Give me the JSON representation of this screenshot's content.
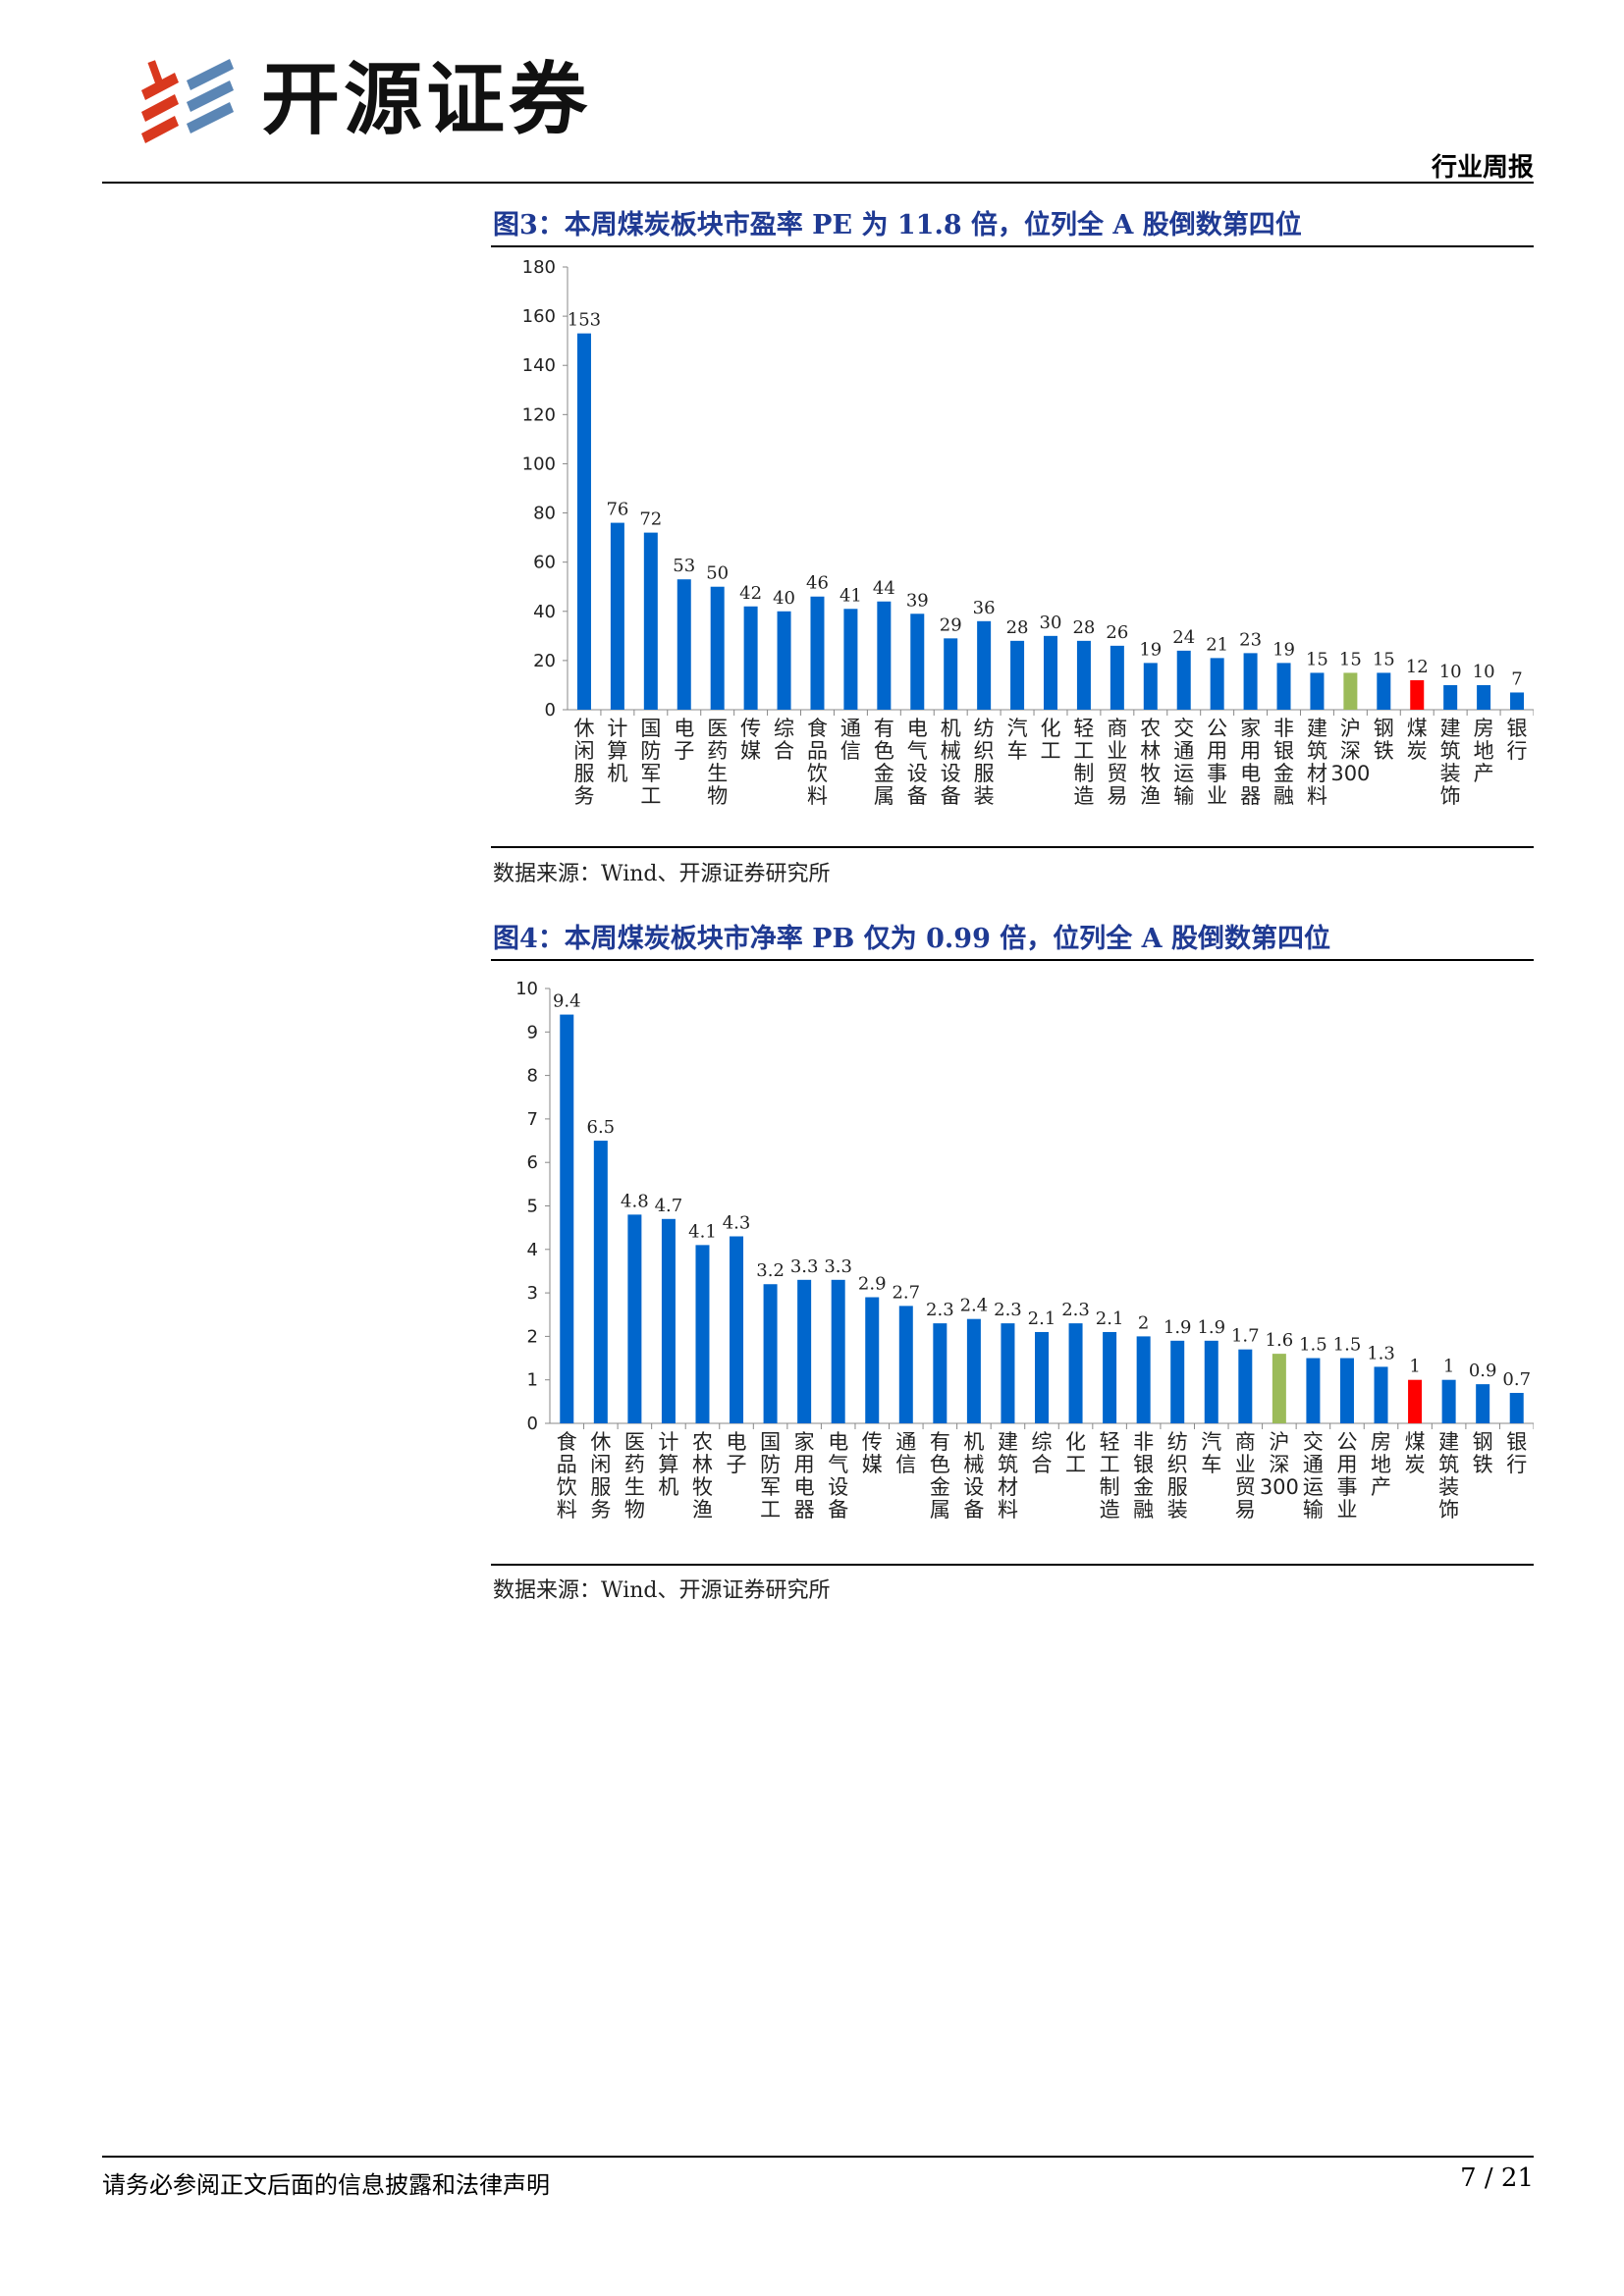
{
  "header": {
    "brand": "开源证券",
    "report_type": "行业周报",
    "colors": {
      "logo_red": "#d9381e",
      "logo_blue": "#5b86b5"
    }
  },
  "figures": [
    {
      "title": "图3：本周煤炭板块市盈率 PE 为 11.8 倍，位列全 A 股倒数第四位",
      "source": "数据来源：Wind、开源证券研究所"
    },
    {
      "title": "图4：本周煤炭板块市净率 PB 仅为 0.99 倍，位列全 A 股倒数第四位",
      "source": "数据来源：Wind、开源证券研究所"
    }
  ],
  "chart_data": [
    {
      "type": "bar",
      "title": "图3：本周煤炭板块市盈率 PE 为 11.8 倍，位列全 A 股倒数第四位",
      "categories": [
        "休闲服务",
        "计算机",
        "国防军工",
        "电子",
        "医药生物",
        "传媒",
        "综合",
        "食品饮料",
        "通信",
        "有色金属",
        "电气设备",
        "机械设备",
        "纺织服装",
        "汽车",
        "化工",
        "轻工制造",
        "商业贸易",
        "农林牧渔",
        "交通运输",
        "公用事业",
        "家用电器",
        "非银金融",
        "建筑材料",
        "沪深300",
        "钢铁",
        "煤炭",
        "建筑装饰",
        "房地产",
        "银行"
      ],
      "values": [
        153,
        76,
        72,
        53,
        50,
        42,
        40,
        46,
        41,
        44,
        39,
        29,
        36,
        28,
        30,
        28,
        26,
        19,
        24,
        21,
        23,
        19,
        15,
        15,
        15,
        12,
        10,
        10,
        7
      ],
      "ylim": [
        0,
        180
      ],
      "yticks": [
        0,
        20,
        40,
        60,
        80,
        100,
        120,
        140,
        160,
        180
      ],
      "colors": {
        "default": "#0066cc",
        "沪深300": "#9bbb59",
        "煤炭": "#ff0000"
      },
      "grid": false
    },
    {
      "type": "bar",
      "title": "图4：本周煤炭板块市净率 PB 仅为 0.99 倍，位列全 A 股倒数第四位",
      "categories": [
        "食品饮料",
        "休闲服务",
        "医药生物",
        "计算机",
        "农林牧渔",
        "电子",
        "国防军工",
        "家用电器",
        "电气设备",
        "传媒",
        "通信",
        "有色金属",
        "机械设备",
        "建筑材料",
        "综合",
        "化工",
        "轻工制造",
        "非银金融",
        "纺织服装",
        "汽车",
        "商业贸易",
        "沪深300",
        "交通运输",
        "公用事业",
        "房地产",
        "煤炭",
        "建筑装饰",
        "钢铁",
        "银行"
      ],
      "values": [
        9.4,
        6.5,
        4.8,
        4.7,
        4.1,
        4.3,
        3.2,
        3.3,
        3.3,
        2.9,
        2.7,
        2.3,
        2.4,
        2.3,
        2.1,
        2.3,
        2.1,
        2.0,
        1.9,
        1.9,
        1.7,
        1.6,
        1.5,
        1.5,
        1.3,
        1.0,
        1.0,
        0.9,
        0.7
      ],
      "ylim": [
        0,
        10
      ],
      "yticks": [
        0,
        1,
        2,
        3,
        4,
        5,
        6,
        7,
        8,
        9,
        10
      ],
      "colors": {
        "default": "#0066cc",
        "沪深300": "#9bbb59",
        "煤炭": "#ff0000"
      },
      "grid": false
    }
  ],
  "footer": {
    "disclaimer": "请务必参阅正文后面的信息披露和法律声明",
    "page": "7 / 21"
  }
}
